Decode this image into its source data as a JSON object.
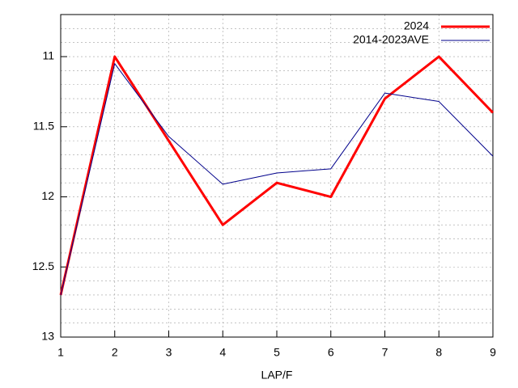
{
  "chart_data": {
    "type": "line",
    "x_label": "LAP/F",
    "x": [
      1,
      2,
      3,
      4,
      5,
      6,
      7,
      8,
      9
    ],
    "series": [
      {
        "name": "2024",
        "color": "#ff0000",
        "width": 3,
        "values": [
          12.7,
          11.0,
          11.6,
          12.2,
          11.9,
          12.0,
          11.3,
          11.0,
          11.4
        ]
      },
      {
        "name": "2014-2023AVE",
        "color": "#00008b",
        "width": 1,
        "values": [
          12.7,
          11.05,
          11.57,
          11.91,
          11.83,
          11.8,
          11.26,
          11.32,
          11.71
        ]
      }
    ],
    "xlim": [
      1,
      9
    ],
    "xticks": [
      1,
      2,
      3,
      4,
      5,
      6,
      7,
      8,
      9
    ],
    "ylim": [
      10.7,
      13
    ],
    "yticks": [
      11,
      11.5,
      12,
      12.5,
      13
    ],
    "y_reversed": true,
    "y_minor_divisions": 5,
    "grid": true,
    "legend": "top-right"
  }
}
